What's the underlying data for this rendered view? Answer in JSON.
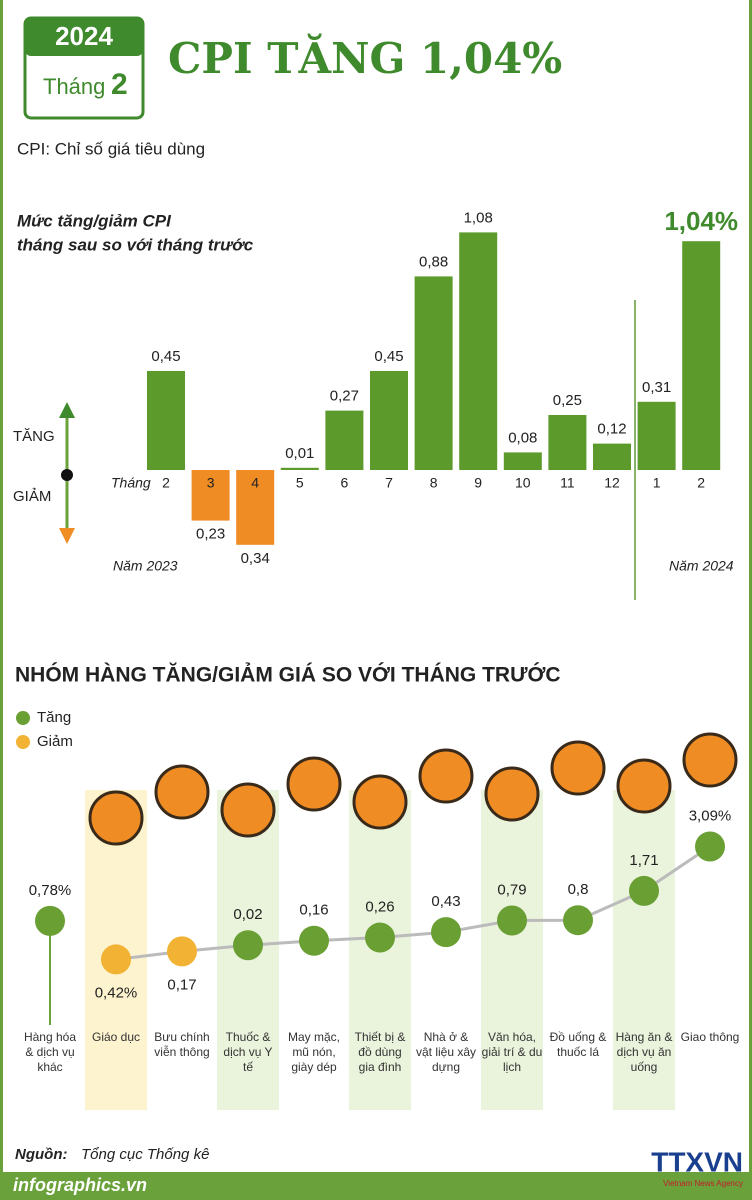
{
  "header": {
    "year": "2024",
    "month_label": "Tháng",
    "month": "2",
    "title": "CPI TĂNG 1,04%",
    "definition": "CPI: Chỉ số giá tiêu dùng"
  },
  "chart_data": [
    {
      "type": "bar",
      "title": "Mức tăng/giảm CPI",
      "subtitle": "tháng sau so với tháng trước",
      "x_label": "Tháng",
      "year_labels": [
        "Năm 2023",
        "Năm 2024"
      ],
      "direction_labels": [
        "TĂNG",
        "GIẢM"
      ],
      "categories": [
        "2",
        "3",
        "4",
        "5",
        "6",
        "7",
        "8",
        "9",
        "10",
        "11",
        "12",
        "1",
        "2"
      ],
      "values": [
        0.45,
        -0.23,
        -0.34,
        0.01,
        0.27,
        0.45,
        0.88,
        1.08,
        0.08,
        0.25,
        0.12,
        0.31,
        1.04
      ],
      "value_labels": [
        "0,45",
        "0,23",
        "0,34",
        "0,01",
        "0,27",
        "0,45",
        "0,88",
        "1,08",
        "0,08",
        "0,25",
        "0,12",
        "0,31",
        "1,04%"
      ],
      "color": "#5c9a2b",
      "negative_color": "#f08c24",
      "ylim": [
        -0.4,
        1.1
      ]
    },
    {
      "type": "dot",
      "title": "NHÓM HÀNG TĂNG/GIẢM GIÁ SO VỚI THÁNG TRƯỚC",
      "legend": [
        {
          "name": "Tăng",
          "color": "#6a9f34"
        },
        {
          "name": "Giảm",
          "color": "#f2b233"
        }
      ],
      "categories": [
        "Hàng hóa & dịch vụ khác",
        "Giáo dục",
        "Bưu chính viễn thông",
        "Thuốc & dịch vụ Y tế",
        "May mặc, mũ nón, giày dép",
        "Thiết bị & đồ dùng gia đình",
        "Nhà ở & vật liệu xây dựng",
        "Văn hóa, giải trí & du lịch",
        "Đồ uống & thuốc lá",
        "Hàng ăn & dịch vụ ăn uống",
        "Giao thông"
      ],
      "values": [
        0.78,
        -0.42,
        -0.17,
        0.02,
        0.16,
        0.26,
        0.43,
        0.79,
        0.8,
        1.71,
        3.09
      ],
      "value_labels": [
        "0,78%",
        "0,42%",
        "0,17",
        "0,02",
        "0,16",
        "0,26",
        "0,43",
        "0,79",
        "0,8",
        "1,71",
        "3,09%"
      ],
      "ylim": [
        -0.5,
        3.2
      ]
    }
  ],
  "footer": {
    "source_label": "Nguồn:",
    "source": "Tổng cục Thống kê",
    "site": "infographics.vn",
    "agency": "TTXVN",
    "agency_en": "Vietnam News Agency"
  }
}
